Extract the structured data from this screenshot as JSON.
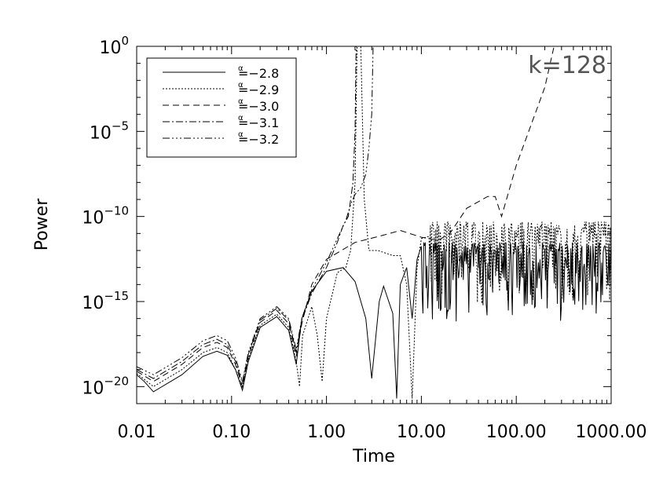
{
  "chart_data": {
    "type": "line",
    "title": "",
    "annotation": "k=128",
    "xlabel": "Time",
    "ylabel": "Power",
    "xscale": "log",
    "yscale": "log",
    "xlim": [
      0.01,
      1000
    ],
    "ylim": [
      1e-21,
      1
    ],
    "grid": false,
    "legend_position": "top-left",
    "x_ticks": [
      {
        "value": 0.01,
        "label": "0.01"
      },
      {
        "value": 0.1,
        "label": "0.10"
      },
      {
        "value": 1,
        "label": "1.00"
      },
      {
        "value": 10,
        "label": "10.00"
      },
      {
        "value": 100,
        "label": "100.00"
      },
      {
        "value": 1000,
        "label": "1000.00"
      }
    ],
    "y_ticks": [
      {
        "value": 1e-20,
        "base": "10",
        "exp": "−20"
      },
      {
        "value": 1e-15,
        "base": "10",
        "exp": "−15"
      },
      {
        "value": 1e-10,
        "base": "10",
        "exp": "−10"
      },
      {
        "value": 1e-05,
        "base": "10",
        "exp": "−5"
      },
      {
        "value": 1,
        "base": "10",
        "exp": "0"
      }
    ],
    "series": [
      {
        "name": "=−2.8",
        "symbol": "α",
        "dash": "",
        "points": [
          [
            0.01,
            5e-20
          ],
          [
            0.012,
            2e-20
          ],
          [
            0.015,
            5e-21
          ],
          [
            0.03,
            5e-20
          ],
          [
            0.05,
            6e-19
          ],
          [
            0.07,
            1.2e-18
          ],
          [
            0.09,
            7e-19
          ],
          [
            0.11,
            1e-19
          ],
          [
            0.13,
            6e-21
          ],
          [
            0.15,
            3e-19
          ],
          [
            0.2,
            3e-17
          ],
          [
            0.3,
            1.3e-16
          ],
          [
            0.4,
            2e-17
          ],
          [
            0.48,
            2e-19
          ],
          [
            0.55,
            1e-16
          ],
          [
            0.7,
            4e-15
          ],
          [
            1,
            6e-14
          ],
          [
            1.5,
            1e-13
          ],
          [
            2,
            1.5e-14
          ],
          [
            2.6,
            1e-16
          ],
          [
            3,
            3e-20
          ],
          [
            3.6,
            1e-15
          ],
          [
            4,
            8e-15
          ],
          [
            5,
            2e-16
          ],
          [
            5.5,
            2e-21
          ],
          [
            6,
            1e-14
          ],
          [
            7,
            1e-13
          ],
          [
            8,
            1e-16
          ],
          [
            9,
            3e-13
          ],
          [
            10,
            1e-12
          ],
          [
            12,
            2e-12
          ],
          [
            15,
            6e-13
          ],
          [
            20,
            1e-12
          ],
          [
            30,
            3e-12
          ],
          [
            50,
            1e-11
          ],
          [
            100,
            1e-12
          ],
          [
            200,
            3e-12
          ],
          [
            500,
            5e-12
          ],
          [
            1000,
            6e-12
          ]
        ],
        "noise": {
          "from": 10,
          "low": 1e-16,
          "high": 3e-12
        }
      },
      {
        "name": "=−2.9",
        "symbol": "α",
        "dash": "2 2",
        "points": [
          [
            0.01,
            6e-20
          ],
          [
            0.015,
            1e-20
          ],
          [
            0.03,
            1e-19
          ],
          [
            0.05,
            1e-18
          ],
          [
            0.07,
            2e-18
          ],
          [
            0.09,
            1e-18
          ],
          [
            0.11,
            1e-19
          ],
          [
            0.13,
            8e-21
          ],
          [
            0.15,
            4e-19
          ],
          [
            0.2,
            4e-17
          ],
          [
            0.3,
            1.8e-16
          ],
          [
            0.4,
            3e-17
          ],
          [
            0.48,
            3e-19
          ],
          [
            0.52,
            1e-20
          ],
          [
            0.56,
            1e-17
          ],
          [
            0.7,
            5e-16
          ],
          [
            0.8,
            1e-17
          ],
          [
            0.9,
            2e-20
          ],
          [
            1,
            1e-16
          ],
          [
            1.3,
            5e-14
          ],
          [
            1.6,
            1e-13
          ],
          [
            1.8,
            1e-12
          ],
          [
            2,
            1e-08
          ],
          [
            2.1,
            1
          ],
          [
            2.3,
            1
          ],
          [
            2.5,
            1e-09
          ],
          [
            2.8,
            1e-12
          ],
          [
            3.5,
            1e-12
          ],
          [
            5,
            5e-13
          ],
          [
            6,
            5e-13
          ],
          [
            7,
            1e-14
          ],
          [
            8,
            2e-21
          ],
          [
            9,
            1e-13
          ],
          [
            10,
            5e-12
          ],
          [
            15,
            5e-12
          ],
          [
            30,
            2e-12
          ],
          [
            60,
            3e-11
          ],
          [
            100,
            2e-11
          ],
          [
            300,
            1e-11
          ],
          [
            1000,
            1e-11
          ]
        ],
        "noise": {
          "from": 12,
          "low": 1e-15,
          "high": 5e-11
        }
      },
      {
        "name": "=−3.0",
        "symbol": "α",
        "dash": "8 5",
        "points": [
          [
            0.01,
            8e-20
          ],
          [
            0.015,
            2e-20
          ],
          [
            0.03,
            2e-19
          ],
          [
            0.05,
            2e-18
          ],
          [
            0.07,
            4e-18
          ],
          [
            0.09,
            2e-18
          ],
          [
            0.11,
            2e-19
          ],
          [
            0.13,
            1e-20
          ],
          [
            0.15,
            6e-19
          ],
          [
            0.2,
            6e-17
          ],
          [
            0.3,
            3e-16
          ],
          [
            0.4,
            5e-17
          ],
          [
            0.48,
            6e-19
          ],
          [
            0.55,
            5e-17
          ],
          [
            0.7,
            1e-14
          ],
          [
            1,
            3e-13
          ],
          [
            2,
            3e-12
          ],
          [
            4,
            8e-12
          ],
          [
            6,
            1.5e-11
          ],
          [
            10,
            6e-12
          ],
          [
            15,
            4e-12
          ],
          [
            20,
            1e-11
          ],
          [
            30,
            3e-10
          ],
          [
            50,
            1.5e-09
          ],
          [
            60,
            1.5e-09
          ],
          [
            70,
            1e-10
          ],
          [
            100,
            1e-07
          ],
          [
            200,
            0.004
          ],
          [
            250,
            1
          ]
        ],
        "noise": null
      },
      {
        "name": "=−3.1",
        "symbol": "α",
        "dash": "9 3 2 3",
        "points": [
          [
            0.01,
            1e-19
          ],
          [
            0.015,
            3e-20
          ],
          [
            0.03,
            3e-19
          ],
          [
            0.05,
            3e-18
          ],
          [
            0.07,
            6e-18
          ],
          [
            0.09,
            3e-18
          ],
          [
            0.11,
            3e-19
          ],
          [
            0.13,
            1.5e-20
          ],
          [
            0.15,
            8e-19
          ],
          [
            0.2,
            8e-17
          ],
          [
            0.3,
            4e-16
          ],
          [
            0.4,
            8e-17
          ],
          [
            0.48,
            1e-18
          ],
          [
            0.55,
            8e-17
          ],
          [
            0.7,
            3e-15
          ],
          [
            1,
            1e-13
          ],
          [
            1.3,
            3e-12
          ],
          [
            1.5,
            3e-11
          ],
          [
            1.7,
            1e-10
          ],
          [
            1.8,
            1e-09
          ],
          [
            1.9,
            1e-08
          ],
          [
            2,
            1e-05
          ],
          [
            2.05,
            1
          ]
        ],
        "noise": null
      },
      {
        "name": "=−3.2",
        "symbol": "α",
        "dash": "9 3 2 3 2 3 2 3",
        "points": [
          [
            0.01,
            1.5e-19
          ],
          [
            0.015,
            5e-20
          ],
          [
            0.03,
            5e-19
          ],
          [
            0.05,
            5e-18
          ],
          [
            0.07,
            1e-17
          ],
          [
            0.09,
            5e-18
          ],
          [
            0.11,
            5e-19
          ],
          [
            0.13,
            2e-20
          ],
          [
            0.15,
            1e-18
          ],
          [
            0.2,
            1e-16
          ],
          [
            0.3,
            5e-16
          ],
          [
            0.4,
            1e-16
          ],
          [
            0.48,
            1.5e-18
          ],
          [
            0.55,
            1e-16
          ],
          [
            0.7,
            5e-15
          ],
          [
            1,
            2e-13
          ],
          [
            1.3,
            5e-12
          ],
          [
            1.6,
            6e-11
          ],
          [
            1.8,
            5e-10
          ],
          [
            2,
            2e-09
          ],
          [
            2.3,
            5e-09
          ],
          [
            2.6,
            3e-08
          ],
          [
            2.8,
            1e-06
          ],
          [
            3,
            0.0001
          ],
          [
            3.1,
            1
          ]
        ],
        "noise": null
      }
    ]
  }
}
